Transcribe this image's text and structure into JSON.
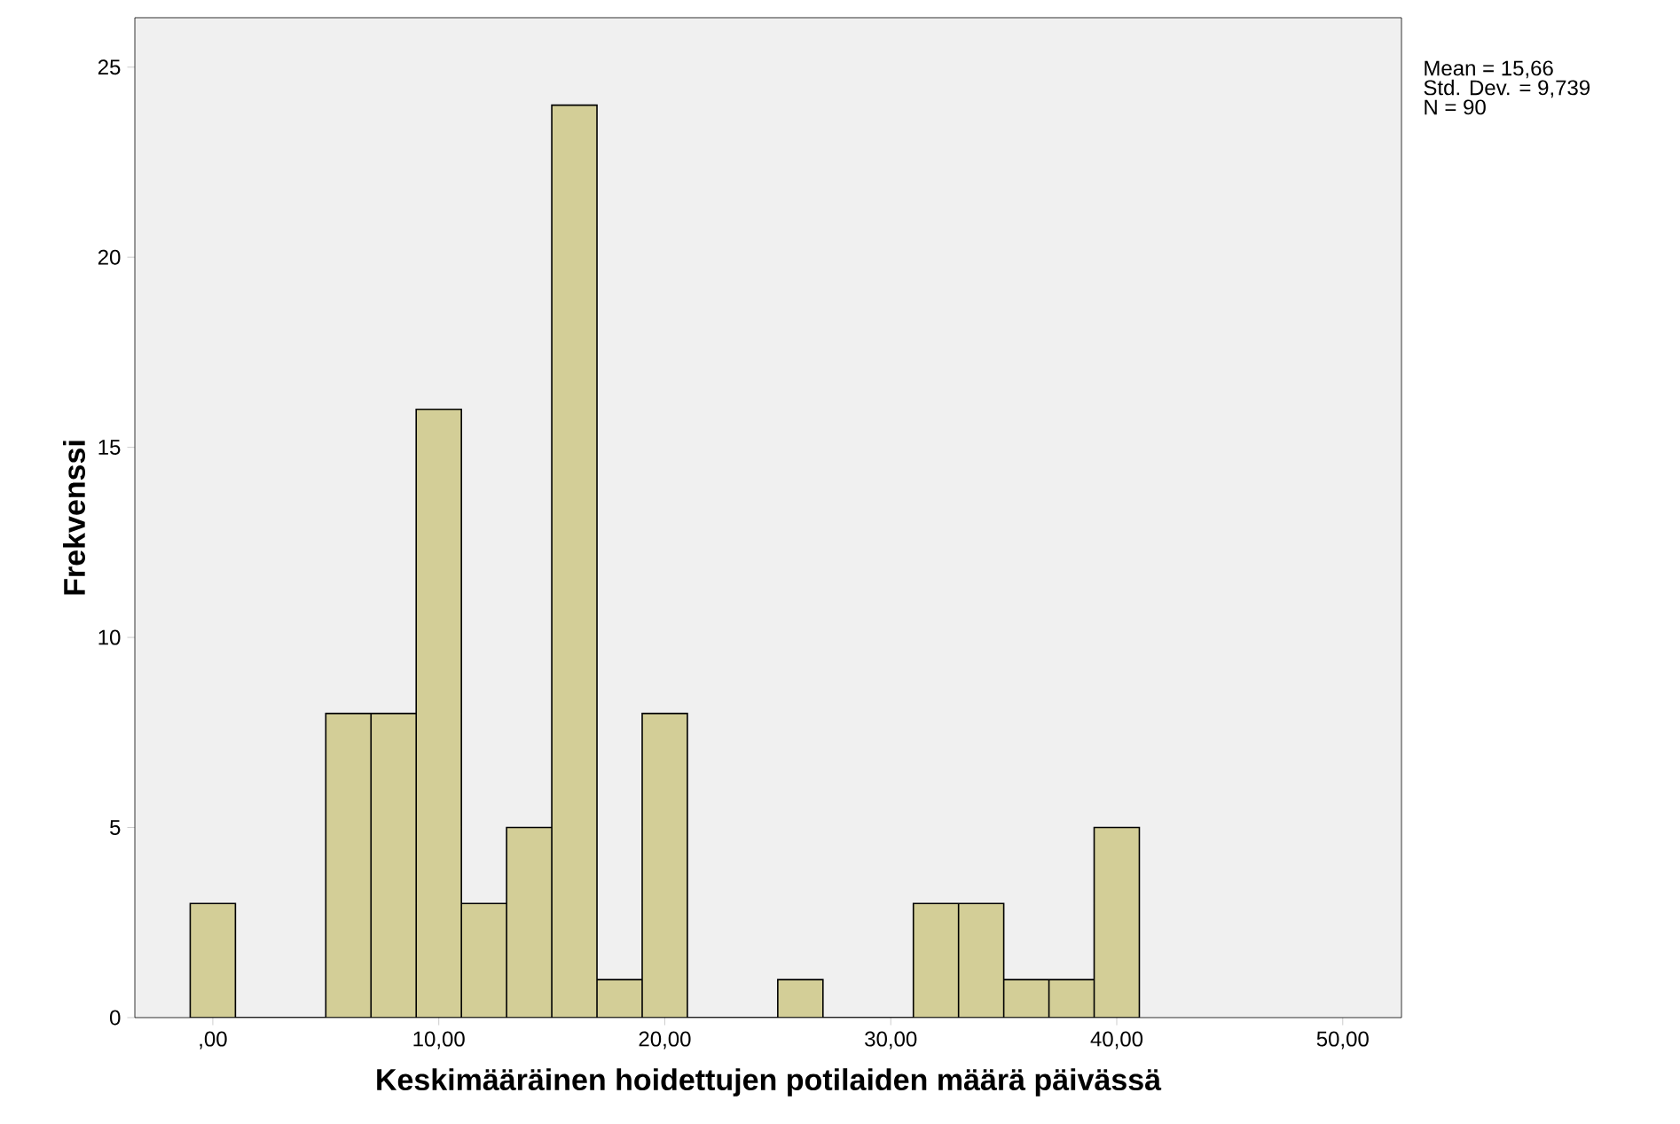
{
  "chart_data": {
    "type": "histogram",
    "xlabel": "Keskimääräinen hoidettujen potilaiden määrä päivässä",
    "ylabel": "Frekvenssi",
    "bins": [
      -1,
      1,
      3,
      5,
      7,
      9,
      11,
      13,
      15,
      17,
      19,
      21,
      23,
      25,
      27,
      29,
      31,
      33,
      35,
      37,
      39,
      41
    ],
    "values": [
      3,
      0,
      0,
      8,
      8,
      16,
      3,
      5,
      24,
      1,
      8,
      0,
      0,
      1,
      0,
      0,
      3,
      3,
      1,
      1,
      5
    ],
    "color": "#d3ce97",
    "xlim": [
      -3.45,
      52.6
    ],
    "ylim": [
      0,
      26.3
    ],
    "xticks": [
      {
        "value": 0,
        "label": ",00"
      },
      {
        "value": 10,
        "label": "10,00"
      },
      {
        "value": 20,
        "label": "20,00"
      },
      {
        "value": 30,
        "label": "30,00"
      },
      {
        "value": 40,
        "label": "40,00"
      },
      {
        "value": 50,
        "label": "50,00"
      }
    ],
    "yticks": [
      0,
      5,
      10,
      15,
      20,
      25
    ],
    "annotations": [
      "Mean = 15,66",
      "Std. Dev. = 9,739",
      "N = 90"
    ],
    "grid": false
  }
}
